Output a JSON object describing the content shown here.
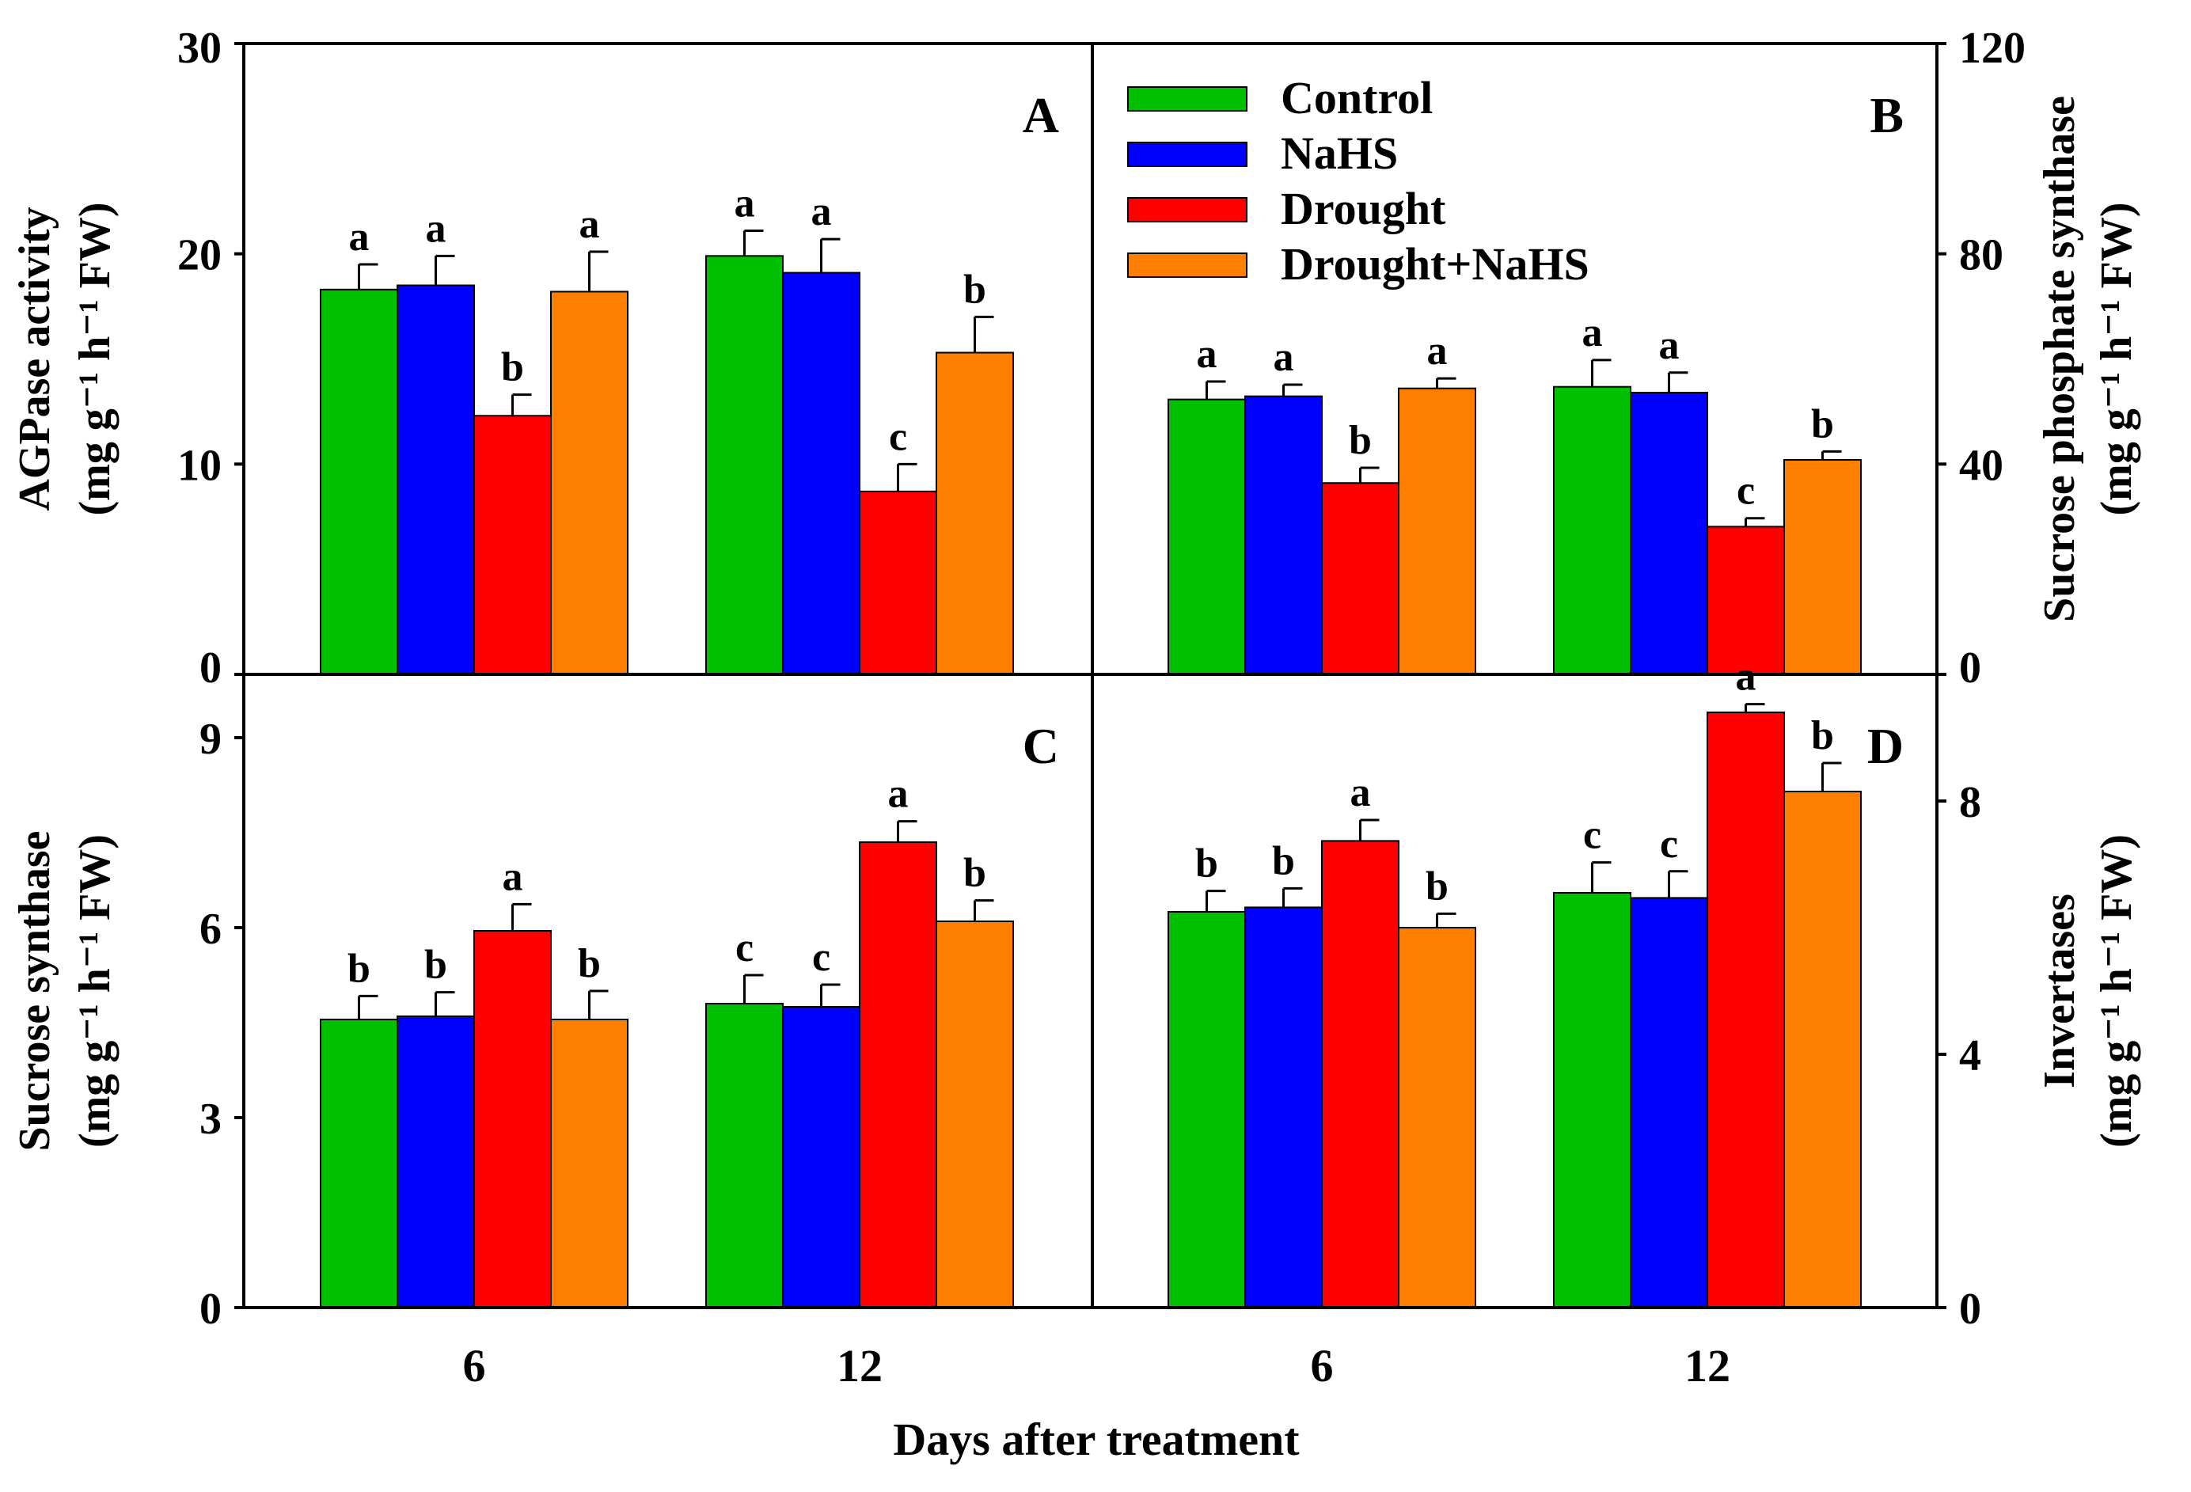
{
  "chart_data": {
    "type": "bar",
    "xlabel": "Days after treatment",
    "categories": [
      "6",
      "12"
    ],
    "legend": {
      "position": "top-right of panel B",
      "entries": [
        {
          "name": "Control",
          "color": "#00c000"
        },
        {
          "name": "NaHS",
          "color": "#0000ff"
        },
        {
          "name": "Drought",
          "color": "#ff0000"
        },
        {
          "name": "Drought+NaHS",
          "color": "#ff8000"
        }
      ]
    },
    "panels": [
      {
        "id": "A",
        "ylabel_line1": "AGPase activity",
        "ylabel_line2": "(mg g⁻¹ h⁻¹ FW)",
        "ylim": [
          0,
          30
        ],
        "yticks": [
          0,
          10,
          20,
          30
        ],
        "axis_side": "left",
        "series": [
          {
            "name": "Control",
            "values": [
              18.3,
              19.9
            ],
            "errors": [
              1.2,
              1.2
            ],
            "letters": [
              "a",
              "a"
            ]
          },
          {
            "name": "NaHS",
            "values": [
              18.5,
              19.1
            ],
            "errors": [
              1.4,
              1.6
            ],
            "letters": [
              "a",
              "a"
            ]
          },
          {
            "name": "Drought",
            "values": [
              12.3,
              8.7
            ],
            "errors": [
              1.0,
              1.3
            ],
            "letters": [
              "b",
              "c"
            ]
          },
          {
            "name": "Drought+NaHS",
            "values": [
              18.2,
              15.3
            ],
            "errors": [
              1.9,
              1.7
            ],
            "letters": [
              "a",
              "b"
            ]
          }
        ]
      },
      {
        "id": "B",
        "ylabel_line1": "Sucrose phosphate synthase",
        "ylabel_line2": "(mg g⁻¹ h⁻¹ FW)",
        "ylim": [
          0,
          120
        ],
        "yticks": [
          0,
          40,
          80,
          120
        ],
        "axis_side": "right",
        "series": [
          {
            "name": "Control",
            "values": [
              52.3,
              54.7
            ],
            "errors": [
              3.4,
              5.1
            ],
            "letters": [
              "a",
              "a"
            ]
          },
          {
            "name": "NaHS",
            "values": [
              52.9,
              53.6
            ],
            "errors": [
              2.2,
              3.8
            ],
            "letters": [
              "a",
              "a"
            ]
          },
          {
            "name": "Drought",
            "values": [
              36.4,
              28.1
            ],
            "errors": [
              2.9,
              1.6
            ],
            "letters": [
              "b",
              "c"
            ]
          },
          {
            "name": "Drought+NaHS",
            "values": [
              54.4,
              40.8
            ],
            "errors": [
              1.9,
              1.6
            ],
            "letters": [
              "a",
              "b"
            ]
          }
        ]
      },
      {
        "id": "C",
        "ylabel_line1": "Sucrose synthase",
        "ylabel_line2": "(mg g⁻¹ h⁻¹ FW)",
        "ylim": [
          0,
          10
        ],
        "yticks": [
          0,
          3,
          6,
          9
        ],
        "axis_side": "left",
        "series": [
          {
            "name": "Control",
            "values": [
              4.55,
              4.8
            ],
            "errors": [
              0.37,
              0.45
            ],
            "letters": [
              "b",
              "c"
            ]
          },
          {
            "name": "NaHS",
            "values": [
              4.6,
              4.75
            ],
            "errors": [
              0.38,
              0.35
            ],
            "letters": [
              "b",
              "c"
            ]
          },
          {
            "name": "Drought",
            "values": [
              5.95,
              7.35
            ],
            "errors": [
              0.42,
              0.33
            ],
            "letters": [
              "a",
              "a"
            ]
          },
          {
            "name": "Drought+NaHS",
            "values": [
              4.55,
              6.1
            ],
            "errors": [
              0.45,
              0.33
            ],
            "letters": [
              "b",
              "b"
            ]
          }
        ]
      },
      {
        "id": "D",
        "ylabel_line1": "Invertases",
        "ylabel_line2": "(mg g⁻¹ h⁻¹ FW)",
        "ylim": [
          0,
          10
        ],
        "yticks": [
          0,
          4,
          8
        ],
        "axis_side": "right",
        "series": [
          {
            "name": "Control",
            "values": [
              6.25,
              6.55
            ],
            "errors": [
              0.33,
              0.48
            ],
            "letters": [
              "b",
              "c"
            ]
          },
          {
            "name": "NaHS",
            "values": [
              6.32,
              6.47
            ],
            "errors": [
              0.3,
              0.42
            ],
            "letters": [
              "b",
              "c"
            ]
          },
          {
            "name": "Drought",
            "values": [
              7.37,
              9.4
            ],
            "errors": [
              0.33,
              0.13
            ],
            "letters": [
              "a",
              "a"
            ]
          },
          {
            "name": "Drought+NaHS",
            "values": [
              6.0,
              8.15
            ],
            "errors": [
              0.22,
              0.45
            ],
            "letters": [
              "b",
              "b"
            ]
          }
        ]
      }
    ]
  }
}
